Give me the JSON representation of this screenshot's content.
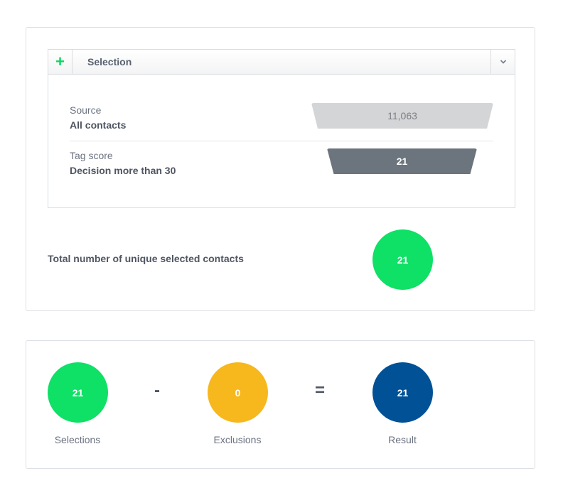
{
  "selection_panel": {
    "title": "Selection",
    "add_icon": "plus-icon",
    "toggle_icon": "chevron-down-icon",
    "rows": [
      {
        "label": "Source",
        "value": "All contacts",
        "count": "11,063",
        "bar_color": "#d4d5d6"
      },
      {
        "label": "Tag score",
        "value": "Decision more than 30",
        "count": "21",
        "bar_color": "#6c757d"
      }
    ]
  },
  "total": {
    "label": "Total number of unique selected contacts",
    "value": "21",
    "color": "#0fe066"
  },
  "summary": {
    "selections": {
      "value": "21",
      "label": "Selections",
      "color": "#0fe066"
    },
    "minus": "-",
    "exclusions": {
      "value": "0",
      "label": "Exclusions",
      "color": "#f7b81d"
    },
    "equals": "=",
    "result": {
      "value": "21",
      "label": "Result",
      "color": "#005196"
    }
  }
}
